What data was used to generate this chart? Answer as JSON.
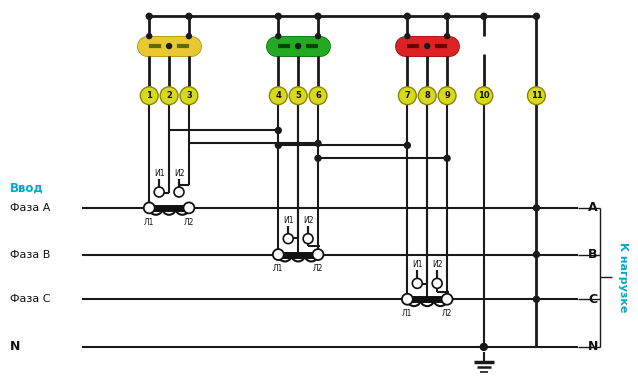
{
  "bg_color": "#ffffff",
  "line_color": "#1a1a1a",
  "bus_yellow": "#e8c830",
  "bus_green": "#22aa22",
  "bus_red": "#dd2222",
  "terminal_fill": "#d8d820",
  "label_cyan": "#00aacc",
  "terminal_numbers": [
    "1",
    "2",
    "3",
    "4",
    "5",
    "6",
    "7",
    "8",
    "9",
    "10",
    "11"
  ],
  "left_labels": [
    "Ввод",
    "Фаза A",
    "Фаза B",
    "Фаза C",
    "N"
  ],
  "right_labels": [
    "A",
    "B",
    "C",
    "N"
  ],
  "side_label": "К нагрузке",
  "ct_labels_i": [
    "И1",
    "И2"
  ],
  "ct_labels_l": [
    "Л1",
    "Л2"
  ]
}
